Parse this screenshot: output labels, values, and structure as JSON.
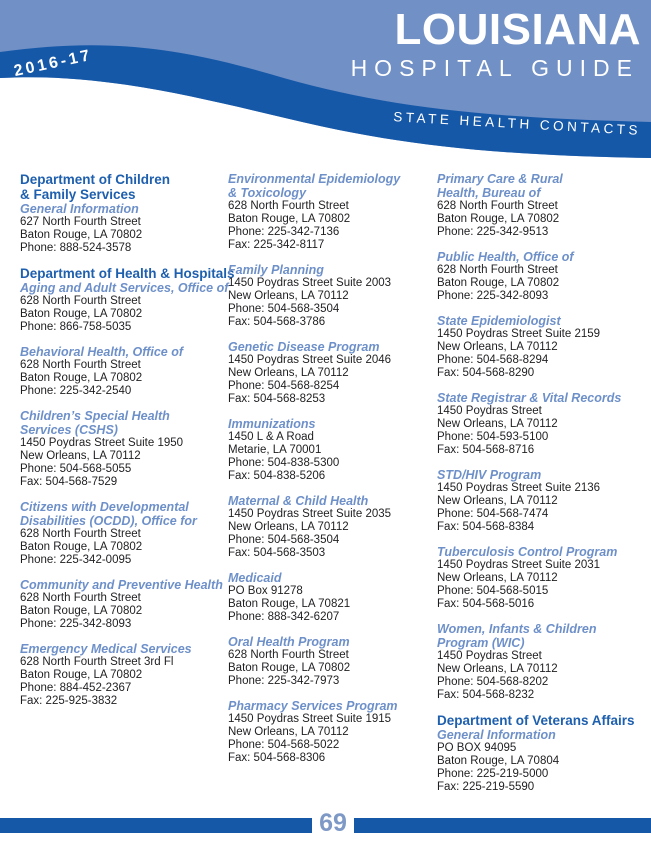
{
  "header": {
    "year_badge": "2016-17",
    "title": "LOUISIANA",
    "subtitle": "HOSPITAL GUIDE",
    "section_label": "STATE HEALTH CONTACTS",
    "colors": {
      "banner_background": "#7190c5",
      "wave_band": "#1658a8",
      "text": "#ffffff"
    }
  },
  "colors": {
    "department_heading": "#1e5fae",
    "program_name": "#6e90c9",
    "body_text": "#1f1e21",
    "page_number": "#7e99c6"
  },
  "columns": [
    {
      "entries": [
        {
          "department_lines": [
            "Department of Children",
            "& Family Services"
          ],
          "program_lines": [
            "General Information"
          ],
          "lines": [
            "627 North Fourth Street",
            "Baton Rouge, LA 70802",
            "Phone: 888-524-3578"
          ]
        },
        {
          "department_lines": [
            "Department of Health & Hospitals"
          ],
          "program_lines": [
            "Aging and Adult Services, Office of"
          ],
          "lines": [
            "628 North Fourth Street",
            "Baton Rouge, LA 70802",
            "Phone: 866-758-5035"
          ]
        },
        {
          "program_lines": [
            "Behavioral Health, Office of"
          ],
          "lines": [
            "628 North Fourth Street",
            "Baton Rouge, LA 70802",
            "Phone: 225-342-2540"
          ]
        },
        {
          "program_lines": [
            "Children’s Special Health",
            "Services (CSHS)"
          ],
          "lines": [
            "1450 Poydras Street Suite 1950",
            "New Orleans, LA 70112",
            "Phone: 504-568-5055",
            "Fax: 504-568-7529"
          ]
        },
        {
          "program_lines": [
            "Citizens with Developmental",
            "Disabilities (OCDD), Office for"
          ],
          "lines": [
            "628 North Fourth Street",
            "Baton Rouge, LA 70802",
            "Phone: 225-342-0095"
          ]
        },
        {
          "program_lines": [
            "Community and Preventive Health"
          ],
          "lines": [
            "628 North Fourth Street",
            "Baton Rouge, LA 70802",
            "Phone: 225-342-8093"
          ]
        },
        {
          "program_lines": [
            "Emergency Medical Services"
          ],
          "lines": [
            "628 North Fourth Street 3rd Fl",
            "Baton Rouge, LA 70802",
            "Phone: 884-452-2367",
            "Fax: 225-925-3832"
          ]
        }
      ]
    },
    {
      "entries": [
        {
          "program_lines": [
            "Environmental Epidemiology",
            "& Toxicology"
          ],
          "lines": [
            "628 North Fourth Street",
            "Baton Rouge, LA 70802",
            "Phone: 225-342-7136",
            "Fax: 225-342-8117"
          ]
        },
        {
          "program_lines": [
            "Family Planning"
          ],
          "lines": [
            "1450 Poydras Street Suite 2003",
            "New Orleans, LA 70112",
            "Phone: 504-568-3504",
            "Fax: 504-568-3786"
          ]
        },
        {
          "program_lines": [
            "Genetic Disease Program"
          ],
          "lines": [
            "1450 Poydras Street Suite 2046",
            "New Orleans, LA 70112",
            "Phone: 504-568-8254",
            "Fax: 504-568-8253"
          ]
        },
        {
          "program_lines": [
            "Immunizations"
          ],
          "lines": [
            "1450 L & A Road",
            "Metarie, LA 70001",
            "Phone: 504-838-5300",
            "Fax: 504-838-5206"
          ]
        },
        {
          "program_lines": [
            "Maternal & Child Health"
          ],
          "lines": [
            "1450 Poydras Street Suite 2035",
            "New Orleans, LA 70112",
            "Phone: 504-568-3504",
            "Fax: 504-568-3503"
          ]
        },
        {
          "program_lines": [
            "Medicaid"
          ],
          "lines": [
            "PO Box 91278",
            "Baton Rouge, LA 70821",
            "Phone: 888-342-6207"
          ]
        },
        {
          "program_lines": [
            "Oral Health Program"
          ],
          "lines": [
            "628 North Fourth Street",
            "Baton Rouge, LA 70802",
            "Phone: 225-342-7973"
          ]
        },
        {
          "program_lines": [
            "Pharmacy Services Program"
          ],
          "lines": [
            "1450 Poydras Street Suite 1915",
            "New Orleans, LA 70112",
            "Phone: 504-568-5022",
            "Fax: 504-568-8306"
          ]
        }
      ]
    },
    {
      "entries": [
        {
          "program_lines": [
            "Primary Care & Rural",
            "Health, Bureau of"
          ],
          "lines": [
            "628 North Fourth Street",
            "Baton Rouge, LA 70802",
            "Phone: 225-342-9513"
          ]
        },
        {
          "program_lines": [
            "Public Health, Office of"
          ],
          "lines": [
            "628 North Fourth Street",
            "Baton Rouge, LA 70802",
            "Phone: 225-342-8093"
          ]
        },
        {
          "program_lines": [
            "State Epidemiologist"
          ],
          "lines": [
            "1450 Poydras Street Suite 2159",
            "New Orleans, LA 70112",
            "Phone: 504-568-8294",
            "Fax: 504-568-8290"
          ]
        },
        {
          "program_lines": [
            "State Registrar & Vital Records"
          ],
          "lines": [
            "1450 Poydras Street",
            "New Orleans, LA 70112",
            "Phone: 504-593-5100",
            "Fax: 504-568-8716"
          ]
        },
        {
          "program_lines": [
            "STD/HIV Program"
          ],
          "lines": [
            "1450 Poydras Street Suite 2136",
            "New Orleans, LA 70112",
            "Phone: 504-568-7474",
            "Fax: 504-568-8384"
          ]
        },
        {
          "program_lines": [
            "Tuberculosis Control Program"
          ],
          "lines": [
            "1450 Poydras Street Suite 2031",
            "New Orleans, LA 70112",
            "Phone: 504-568-5015",
            "Fax: 504-568-5016"
          ]
        },
        {
          "program_lines": [
            "Women, Infants & Children",
            "Program (WIC)"
          ],
          "lines": [
            "1450 Poydras Street",
            "New Orleans, LA 70112",
            "Phone: 504-568-8202",
            "Fax: 504-568-8232"
          ]
        },
        {
          "department_lines": [
            "Department of Veterans Affairs"
          ],
          "program_lines": [
            "General Information"
          ],
          "lines": [
            "PO BOX 94095",
            "Baton Rouge, LA 70804",
            "Phone: 225-219-5000",
            "Fax: 225-219-5590"
          ]
        }
      ]
    }
  ],
  "footer": {
    "page_number": "69"
  }
}
